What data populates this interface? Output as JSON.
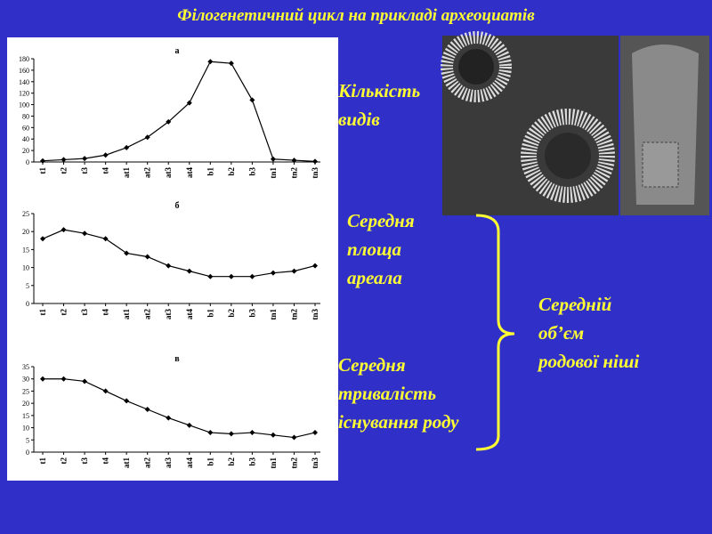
{
  "slide": {
    "title": "Філогенетичний цикл на прикладі археоциатів",
    "species": [
      "Кількість",
      "видів"
    ],
    "area": [
      "Середня",
      "площа",
      "ареала"
    ],
    "duration": [
      "Середня",
      "тривалість",
      "існування роду"
    ],
    "niche": [
      "Середній",
      "об’єм",
      "родової ніші"
    ]
  },
  "chart_data": [
    {
      "type": "line",
      "title": "а",
      "categories": [
        "t1",
        "t2",
        "t3",
        "t4",
        "at1",
        "at2",
        "at3",
        "at4",
        "b1",
        "b2",
        "b3",
        "tn1",
        "tn2",
        "tn3"
      ],
      "values": [
        2,
        4,
        6,
        12,
        25,
        43,
        70,
        103,
        175,
        172,
        108,
        5,
        3,
        1
      ],
      "color": "#000000",
      "ylim": [
        0,
        180
      ],
      "yticks": [
        0,
        20,
        40,
        60,
        80,
        100,
        120,
        140,
        160,
        180
      ]
    },
    {
      "type": "line",
      "title": "б",
      "categories": [
        "t1",
        "t2",
        "t3",
        "t4",
        "at1",
        "at2",
        "at3",
        "at4",
        "b1",
        "b2",
        "b3",
        "tn1",
        "tn2",
        "tn3"
      ],
      "values": [
        18,
        20.5,
        19.5,
        18,
        14,
        13,
        10.5,
        9,
        7.5,
        7.5,
        7.5,
        8.5,
        9,
        10.5
      ],
      "color": "#000000",
      "ylim": [
        0,
        25
      ],
      "yticks": [
        0,
        5,
        10,
        15,
        20,
        25
      ]
    },
    {
      "type": "line",
      "title": "в",
      "categories": [
        "t1",
        "t2",
        "t3",
        "t4",
        "at1",
        "at2",
        "at3",
        "at4",
        "b1",
        "b2",
        "b3",
        "tn1",
        "tn2",
        "tn3"
      ],
      "values": [
        30,
        30,
        29,
        25,
        21,
        17.5,
        14,
        11,
        8,
        7.5,
        8,
        7,
        6,
        8
      ],
      "color": "#000000",
      "ylim": [
        0,
        35
      ],
      "yticks": [
        0,
        5,
        10,
        15,
        20,
        25,
        30,
        35
      ]
    }
  ]
}
